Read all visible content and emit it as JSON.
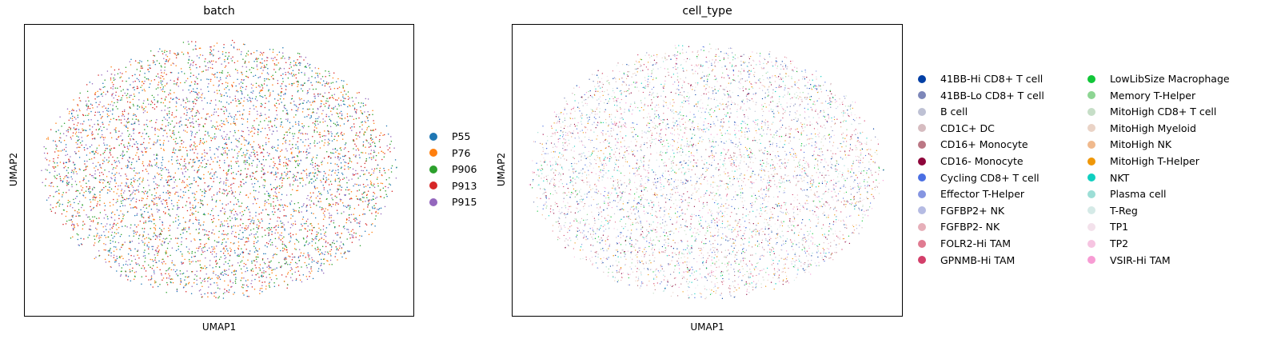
{
  "chart_data": [
    {
      "type": "scatter",
      "title": "batch",
      "xlabel": "UMAP1",
      "ylabel": "UMAP2",
      "grid": false,
      "legend_placement": "right",
      "series": [
        {
          "name": "P55",
          "color": "#1f77b4"
        },
        {
          "name": "P76",
          "color": "#ff7f0e"
        },
        {
          "name": "P906",
          "color": "#2ca02c"
        },
        {
          "name": "P913",
          "color": "#d62728"
        },
        {
          "name": "P915",
          "color": "#9467bd"
        }
      ]
    },
    {
      "type": "scatter",
      "title": "cell_type",
      "xlabel": "UMAP1",
      "ylabel": "UMAP2",
      "grid": false,
      "legend_placement": "right",
      "legend_columns": 2,
      "series": [
        {
          "name": "41BB-Hi CD8+ T cell",
          "color": "#023fa5"
        },
        {
          "name": "41BB-Lo CD8+ T cell",
          "color": "#7d87b9"
        },
        {
          "name": "B cell",
          "color": "#bec1d4"
        },
        {
          "name": "CD1C+ DC",
          "color": "#d6bcc0"
        },
        {
          "name": "CD16+ Monocyte",
          "color": "#bb7784"
        },
        {
          "name": "CD16- Monocyte",
          "color": "#8e063b"
        },
        {
          "name": "Cycling CD8+ T cell",
          "color": "#4a6fe3"
        },
        {
          "name": "Effector T-Helper",
          "color": "#8595e1"
        },
        {
          "name": "FGFBP2+ NK",
          "color": "#b5bbe3"
        },
        {
          "name": "FGFBP2- NK",
          "color": "#e6afb9"
        },
        {
          "name": "FOLR2-Hi TAM",
          "color": "#e07b91"
        },
        {
          "name": "GPNMB-Hi TAM",
          "color": "#d33f6a"
        },
        {
          "name": "LowLibSize Macrophage",
          "color": "#11c638"
        },
        {
          "name": "Memory T-Helper",
          "color": "#8dd593"
        },
        {
          "name": "MitoHigh CD8+ T cell",
          "color": "#c6dec7"
        },
        {
          "name": "MitoHigh Myeloid",
          "color": "#ead3c6"
        },
        {
          "name": "MitoHigh NK",
          "color": "#f0b98d"
        },
        {
          "name": "MitoHigh T-Helper",
          "color": "#ef9708"
        },
        {
          "name": "NKT",
          "color": "#0fcfc0"
        },
        {
          "name": "Plasma cell",
          "color": "#9cded6"
        },
        {
          "name": "T-Reg",
          "color": "#d5eae7"
        },
        {
          "name": "TP1",
          "color": "#f3e1eb"
        },
        {
          "name": "TP2",
          "color": "#f6c4e1"
        },
        {
          "name": "VSIR-Hi TAM",
          "color": "#f79cd4"
        }
      ]
    }
  ]
}
